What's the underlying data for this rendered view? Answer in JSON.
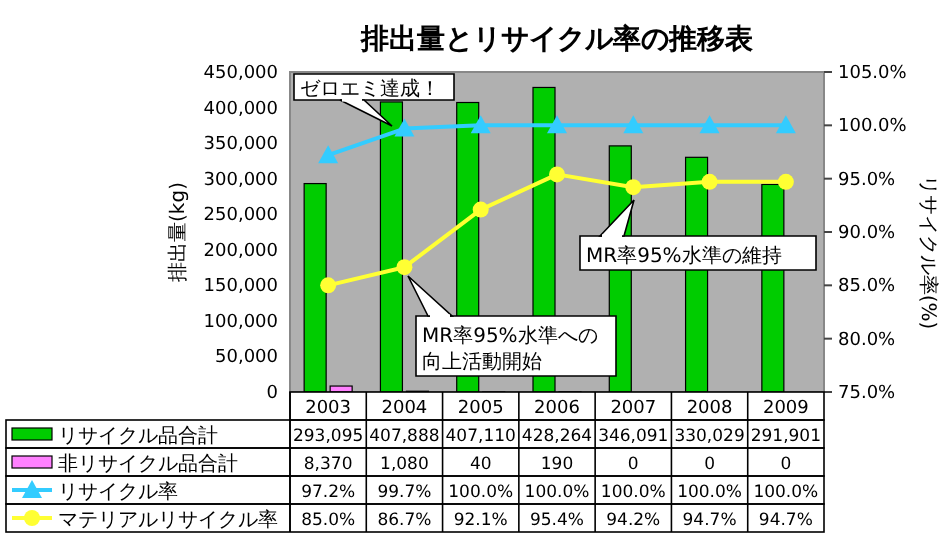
{
  "chart_data": {
    "type": "bar",
    "title": "排出量とリサイクル率の推移表",
    "ylabel": "排出量(kg)",
    "y2label": "リサイクル率(%)",
    "categories": [
      "2003",
      "2004",
      "2005",
      "2006",
      "2007",
      "2008",
      "2009"
    ],
    "series": [
      {
        "name": "リサイクル品合計",
        "color": "#00cc00",
        "values": [
          293095,
          407888,
          407110,
          428264,
          346091,
          330029,
          291901
        ],
        "value_labels": [
          "293,095",
          "407,888",
          "407,110",
          "428,264",
          "346,091",
          "330,029",
          "291,901"
        ]
      },
      {
        "name": "非リサイクル品合計",
        "color": "#ff80ff",
        "values": [
          8370,
          1080,
          40,
          190,
          0,
          0,
          0
        ],
        "value_labels": [
          "8,370",
          "1,080",
          "40",
          "190",
          "0",
          "0",
          "0"
        ]
      },
      {
        "name": "リサイクル率",
        "type": "line",
        "axis": "y2",
        "color": "#33ccff",
        "marker": "triangle",
        "values": [
          97.2,
          99.7,
          100.0,
          100.0,
          100.0,
          100.0,
          100.0
        ],
        "value_labels": [
          "97.2%",
          "99.7%",
          "100.0%",
          "100.0%",
          "100.0%",
          "100.0%",
          "100.0%"
        ]
      },
      {
        "name": "マテリアルリサイクル率",
        "type": "line",
        "axis": "y2",
        "color": "#ffff33",
        "marker": "circle",
        "values": [
          85.0,
          86.7,
          92.1,
          95.4,
          94.2,
          94.7,
          94.7
        ],
        "value_labels": [
          "85.0%",
          "86.7%",
          "92.1%",
          "95.4%",
          "94.2%",
          "94.7%",
          "94.7%"
        ]
      }
    ],
    "ylim": [
      0,
      450000
    ],
    "yticks": [
      {
        "value": 0,
        "label": "0"
      },
      {
        "value": 50000,
        "label": "50,000"
      },
      {
        "value": 100000,
        "label": "100,000"
      },
      {
        "value": 150000,
        "label": "150,000"
      },
      {
        "value": 200000,
        "label": "200,000"
      },
      {
        "value": 250000,
        "label": "250,000"
      },
      {
        "value": 300000,
        "label": "300,000"
      },
      {
        "value": 350000,
        "label": "350,000"
      },
      {
        "value": 400000,
        "label": "400,000"
      },
      {
        "value": 450000,
        "label": "450,000"
      }
    ],
    "y2lim": [
      75,
      105
    ],
    "y2ticks": [
      {
        "value": 75,
        "label": "75.0%"
      },
      {
        "value": 80,
        "label": "80.0%"
      },
      {
        "value": 85,
        "label": "85.0%"
      },
      {
        "value": 90,
        "label": "90.0%"
      },
      {
        "value": 95,
        "label": "95.0%"
      },
      {
        "value": 100,
        "label": "100.0%"
      },
      {
        "value": 105,
        "label": "105.0%"
      }
    ],
    "legend": "bottom",
    "annotations": [
      "ゼロエミ達成！",
      "MR率95%水準の維持",
      "MR率95%水準への向上活動開始"
    ]
  }
}
